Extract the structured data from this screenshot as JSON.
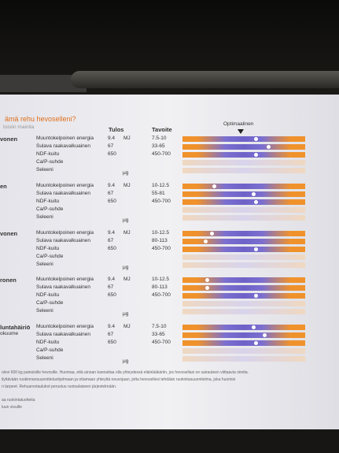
{
  "header": {
    "title": "ämä rehu hevoselleni?",
    "subtitle": "toisiin mainita",
    "columns": {
      "result": "Tulos",
      "target": "Tavoite",
      "optimal": "Optimaalinen"
    }
  },
  "groups": [
    {
      "label": "vonen",
      "rows": [
        {
          "name": "Muuntokelpoinen energia",
          "value": "9.4",
          "unit": "MJ",
          "target": "7.5-10",
          "position": 60
        },
        {
          "name": "Sulava raakavalkuainen",
          "value": "67",
          "target": "33-65",
          "position": 70
        },
        {
          "name": "NDF-kuitu",
          "value": "650",
          "target": "450-700",
          "position": 60
        },
        {
          "name": "Ca/P-suhde"
        },
        {
          "name": "Seleeni",
          "unit": "μg"
        }
      ]
    },
    {
      "label": "en",
      "rows": [
        {
          "name": "Muuntokelpoinen energia",
          "value": "9.4",
          "unit": "MJ",
          "target": "10-12.5",
          "position": 26
        },
        {
          "name": "Sulava raakavalkuainen",
          "value": "67",
          "target": "55-81",
          "position": 58
        },
        {
          "name": "NDF-kuitu",
          "value": "650",
          "target": "450-700",
          "position": 60
        },
        {
          "name": "Ca/P-suhde"
        },
        {
          "name": "Seleeni",
          "unit": "μg"
        }
      ]
    },
    {
      "label": "vonen",
      "rows": [
        {
          "name": "Muuntokelpoinen energia",
          "value": "9.4",
          "unit": "MJ",
          "target": "10-12.5",
          "position": 24
        },
        {
          "name": "Sulava raakavalkuainen",
          "value": "67",
          "target": "80-113",
          "position": 19
        },
        {
          "name": "NDF-kuitu",
          "value": "650",
          "target": "450-700",
          "position": 60
        },
        {
          "name": "Ca/P-suhde"
        },
        {
          "name": "Seleeni",
          "unit": "μg"
        }
      ]
    },
    {
      "label": "ronen",
      "rows": [
        {
          "name": "Muuntokelpoinen energia",
          "value": "9.4",
          "unit": "MJ",
          "target": "10-12.5",
          "position": 20
        },
        {
          "name": "Sulava raakavalkuainen",
          "value": "67",
          "target": "80-113",
          "position": 20
        },
        {
          "name": "NDF-kuitu",
          "value": "650",
          "target": "450-700",
          "position": 60
        },
        {
          "name": "Ca/P-suhde"
        },
        {
          "name": "Seleeni",
          "unit": "μg"
        }
      ]
    },
    {
      "label": "luntahäiriö",
      "sublabel": "okuume",
      "rows": [
        {
          "name": "Muuntokelpoinen energia",
          "value": "9.4",
          "unit": "MJ",
          "target": "7.5-10",
          "position": 58
        },
        {
          "name": "Sulava raakavalkuainen",
          "value": "67",
          "target": "33-65",
          "position": 67
        },
        {
          "name": "NDF-kuitu",
          "value": "650",
          "target": "450-700",
          "position": 60
        },
        {
          "name": "Ca/P-suhde"
        },
        {
          "name": "Seleeni",
          "unit": "μg"
        }
      ]
    }
  ],
  "footer": [
    "olevi 600 kg painoisille hevosille. Huomaa, että ainoan kannattaa olla yhteydessä eläinlääkäriin, jos hevosellasi on sairauteen viittaavia oireita.",
    "ilyttävään ruokinnansuunnitteluohjelmaan ja ottamaan yhteyttä neuvojaan, jotta hevosellesi tehdään ruokintasuunnitelma, joka huomioi",
    "n tarpeet. Rehuarvotaulukot perustuu ruotsalaiseen järjestelmään.",
    "aa ruokintatuotteita",
    "luun sivuille"
  ]
}
